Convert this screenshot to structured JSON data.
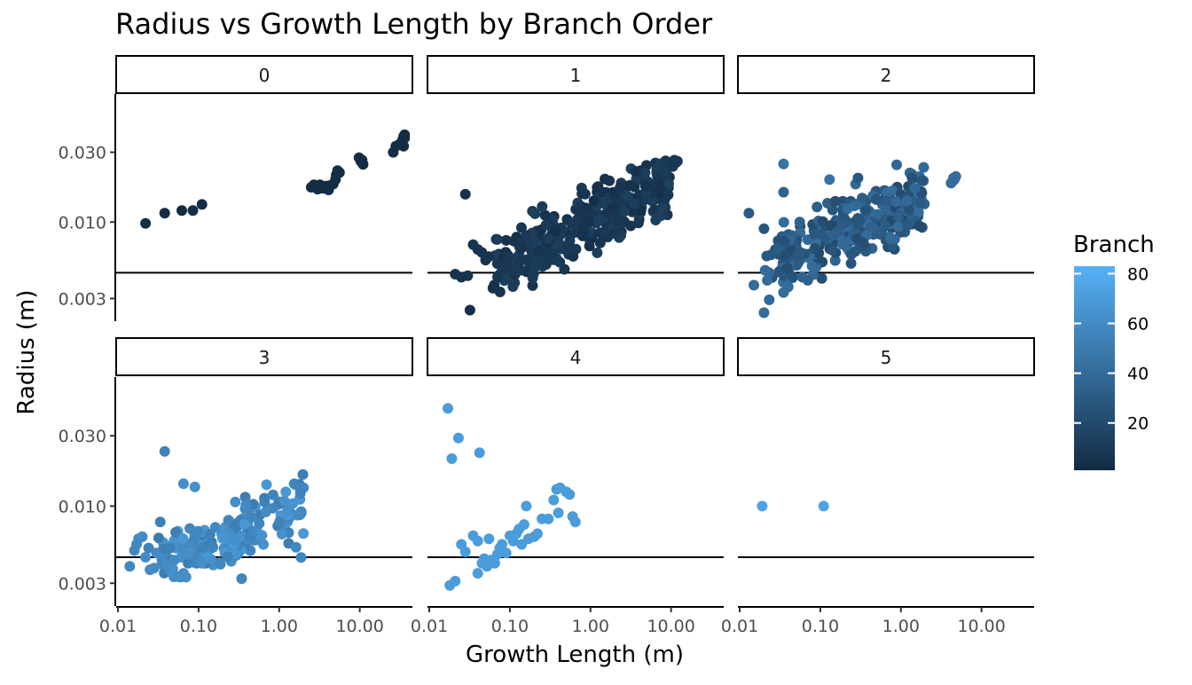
{
  "chart_data": {
    "type": "scatter",
    "title": "Radius vs Growth Length by Branch Order",
    "xlabel": "Growth Length (m)",
    "ylabel": "Radius (m)",
    "x_scale": "log10",
    "y_scale": "log10",
    "x_ticks": [
      "0.01",
      "0.10",
      "1.00",
      "10.00"
    ],
    "y_ticks": [
      "0.003",
      "0.010",
      "0.030"
    ],
    "xlim": [
      0.0095,
      45
    ],
    "ylim": [
      0.0021,
      0.075
    ],
    "reference_line_y": 0.0045,
    "grid": false,
    "legend": {
      "title": "Branch",
      "position": "right",
      "ticks": [
        "20",
        "40",
        "60",
        "80"
      ],
      "range": [
        1,
        83
      ],
      "low_color": "#132B43",
      "high_color": "#56B1F7"
    },
    "panels": [
      {
        "label": "0",
        "points": [
          [
            0.022,
            0.0098,
            2
          ],
          [
            0.038,
            0.0115,
            2
          ],
          [
            0.062,
            0.012,
            2
          ],
          [
            0.085,
            0.012,
            2
          ],
          [
            0.11,
            0.0132,
            2
          ],
          [
            2.5,
            0.0173,
            2
          ],
          [
            2.7,
            0.018,
            2
          ],
          [
            3.0,
            0.0168,
            2
          ],
          [
            3.2,
            0.018,
            2
          ],
          [
            3.5,
            0.017,
            2
          ],
          [
            3.8,
            0.0176,
            2
          ],
          [
            4.1,
            0.0166,
            2
          ],
          [
            4.3,
            0.0178,
            2
          ],
          [
            4.7,
            0.0182,
            2
          ],
          [
            5.0,
            0.0195,
            2
          ],
          [
            5.1,
            0.021,
            2
          ],
          [
            5.3,
            0.0225,
            2
          ],
          [
            5.6,
            0.0218,
            2
          ],
          [
            9.8,
            0.0275,
            2
          ],
          [
            10.3,
            0.026,
            2
          ],
          [
            10.7,
            0.0265,
            2
          ],
          [
            11.0,
            0.0248,
            2
          ],
          [
            26,
            0.03,
            2
          ],
          [
            28,
            0.033,
            2
          ],
          [
            31,
            0.034,
            2
          ],
          [
            33,
            0.0345,
            2
          ],
          [
            34,
            0.0365,
            2
          ],
          [
            35,
            0.0385,
            2
          ],
          [
            36,
            0.0395,
            2
          ],
          [
            36,
            0.0375,
            2
          ],
          [
            35,
            0.033,
            2
          ]
        ]
      },
      {
        "label": "1",
        "generated": {
          "n": 340,
          "xmin": 0.06,
          "xmax": 10,
          "y0": 0.0095,
          "slope": 0.28,
          "sigma": 0.1,
          "color_min": 4,
          "color_max": 14
        },
        "points": [
          [
            0.021,
            0.0044,
            6
          ],
          [
            0.025,
            0.0042,
            6
          ],
          [
            0.03,
            0.0043,
            6
          ],
          [
            0.032,
            0.0025,
            4
          ],
          [
            0.028,
            0.0155,
            5
          ],
          [
            0.035,
            0.007,
            7
          ],
          [
            0.04,
            0.0065,
            6
          ],
          [
            0.045,
            0.0062,
            6
          ],
          [
            0.05,
            0.0055,
            6
          ],
          [
            0.055,
            0.0058,
            6
          ],
          [
            0.07,
            0.0052,
            8
          ],
          [
            0.08,
            0.0049,
            8
          ],
          [
            0.09,
            0.0075,
            6
          ],
          [
            11,
            0.0265,
            8
          ],
          [
            11.5,
            0.0255,
            8
          ],
          [
            12,
            0.026,
            8
          ],
          [
            10.5,
            0.024,
            8
          ]
        ]
      },
      {
        "label": "2",
        "generated": {
          "n": 300,
          "xmin": 0.02,
          "xmax": 2.0,
          "y0": 0.0085,
          "slope": 0.22,
          "sigma": 0.12,
          "color_min": 20,
          "color_max": 42
        },
        "points": [
          [
            0.035,
            0.025,
            45
          ],
          [
            0.13,
            0.0195,
            45
          ],
          [
            0.035,
            0.016,
            35
          ],
          [
            0.013,
            0.0115,
            30
          ],
          [
            0.02,
            0.009,
            28
          ],
          [
            0.02,
            0.0024,
            40
          ],
          [
            0.015,
            0.0037,
            40
          ],
          [
            0.022,
            0.004,
            40
          ],
          [
            0.035,
            0.0033,
            40
          ],
          [
            0.04,
            0.0036,
            40
          ],
          [
            0.06,
            0.0042,
            35
          ],
          [
            0.07,
            0.004,
            35
          ],
          [
            4.2,
            0.0185,
            38
          ],
          [
            4.5,
            0.02,
            38
          ],
          [
            4.8,
            0.0205,
            42
          ],
          [
            4.4,
            0.019,
            42
          ],
          [
            4.6,
            0.0195,
            40
          ]
        ]
      },
      {
        "label": "3",
        "generated": {
          "n": 170,
          "xmin": 0.03,
          "xmax": 2.2,
          "y0": 0.0065,
          "slope": 0.2,
          "sigma": 0.12,
          "color_min": 50,
          "color_max": 68
        },
        "points": [
          [
            0.014,
            0.0039,
            58
          ],
          [
            0.016,
            0.005,
            58
          ],
          [
            0.017,
            0.0055,
            58
          ],
          [
            0.018,
            0.006,
            58
          ],
          [
            0.02,
            0.0062,
            60
          ],
          [
            0.022,
            0.0045,
            60
          ],
          [
            0.024,
            0.0052,
            55
          ],
          [
            0.025,
            0.0037,
            58
          ],
          [
            0.028,
            0.0038,
            60
          ],
          [
            0.03,
            0.0048,
            60
          ],
          [
            0.035,
            0.0044,
            60
          ],
          [
            0.04,
            0.004,
            60
          ],
          [
            0.05,
            0.0043,
            60
          ],
          [
            0.06,
            0.0033,
            62
          ],
          [
            0.065,
            0.0035,
            62
          ],
          [
            0.07,
            0.0033,
            62
          ],
          [
            0.11,
            0.0041,
            62
          ],
          [
            0.038,
            0.0235,
            55
          ],
          [
            0.065,
            0.0142,
            62
          ],
          [
            0.09,
            0.0135,
            62
          ]
        ]
      },
      {
        "label": "4",
        "points": [
          [
            0.017,
            0.046,
            70
          ],
          [
            0.019,
            0.021,
            70
          ],
          [
            0.023,
            0.029,
            70
          ],
          [
            0.042,
            0.023,
            70
          ],
          [
            0.025,
            0.0055,
            70
          ],
          [
            0.028,
            0.0049,
            70
          ],
          [
            0.018,
            0.0029,
            70
          ],
          [
            0.021,
            0.0031,
            70
          ],
          [
            0.035,
            0.0063,
            70
          ],
          [
            0.04,
            0.0058,
            70
          ],
          [
            0.045,
            0.0041,
            70
          ],
          [
            0.048,
            0.0044,
            70
          ],
          [
            0.052,
            0.0039,
            70
          ],
          [
            0.058,
            0.0043,
            70
          ],
          [
            0.04,
            0.0035,
            70
          ],
          [
            0.055,
            0.006,
            70
          ],
          [
            0.07,
            0.0047,
            70
          ],
          [
            0.075,
            0.0052,
            70
          ],
          [
            0.08,
            0.0055,
            70
          ],
          [
            0.09,
            0.0048,
            70
          ],
          [
            0.1,
            0.0063,
            70
          ],
          [
            0.11,
            0.0058,
            70
          ],
          [
            0.12,
            0.0065,
            70
          ],
          [
            0.13,
            0.007,
            70
          ],
          [
            0.15,
            0.0075,
            70
          ],
          [
            0.16,
            0.01,
            70
          ],
          [
            0.17,
            0.006,
            70
          ],
          [
            0.2,
            0.0062,
            70
          ],
          [
            0.22,
            0.0065,
            70
          ],
          [
            0.25,
            0.0082,
            70
          ],
          [
            0.3,
            0.0082,
            70
          ],
          [
            0.35,
            0.011,
            70
          ],
          [
            0.38,
            0.013,
            70
          ],
          [
            0.42,
            0.0133,
            70
          ],
          [
            0.5,
            0.0125,
            70
          ],
          [
            0.55,
            0.012,
            70
          ],
          [
            0.6,
            0.0085,
            70
          ],
          [
            0.65,
            0.0078,
            70
          ],
          [
            0.4,
            0.009,
            70
          ],
          [
            0.14,
            0.0055,
            70
          ],
          [
            0.065,
            0.0041,
            70
          ]
        ]
      },
      {
        "label": "5",
        "points": [
          [
            0.019,
            0.01,
            74
          ],
          [
            0.11,
            0.01,
            74
          ]
        ]
      }
    ]
  }
}
